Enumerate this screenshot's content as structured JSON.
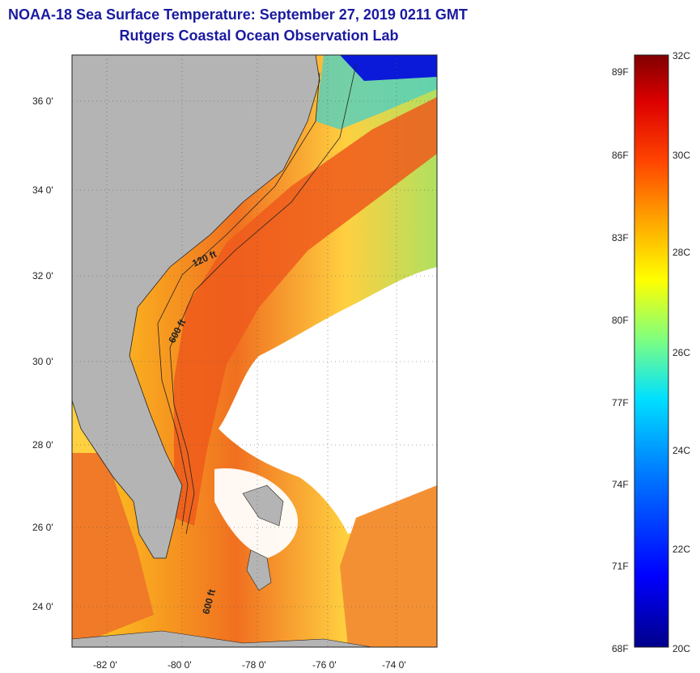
{
  "title": {
    "line1": "NOAA-18 Sea Surface Temperature:  September 27, 2019 0211 GMT",
    "line2": "Rutgers Coastal Ocean Observation Lab"
  },
  "axes": {
    "lat_labels": [
      "36 0'",
      "34 0'",
      "32 0'",
      "30 0'",
      "28 0'",
      "26 0'",
      "24 0'"
    ],
    "lon_labels": [
      "-82 0'",
      "-80 0'",
      "-78 0'",
      "-76 0'",
      "-74 0'"
    ]
  },
  "contours": {
    "label_120": "120 ft",
    "label_600": "600 ft",
    "label_600b": "600 ft"
  },
  "colorbar": {
    "fahrenheit": [
      "89F",
      "86F",
      "83F",
      "80F",
      "77F",
      "74F",
      "71F",
      "68F"
    ],
    "celsius": [
      "32C",
      "30C",
      "28C",
      "26C",
      "24C",
      "22C",
      "20C"
    ]
  },
  "colors": {
    "title": "#1a1aa0",
    "land": "#b4b4b4",
    "cloud": "#ffffff",
    "warm": "#e8501a",
    "cool": "#ffd21e"
  }
}
